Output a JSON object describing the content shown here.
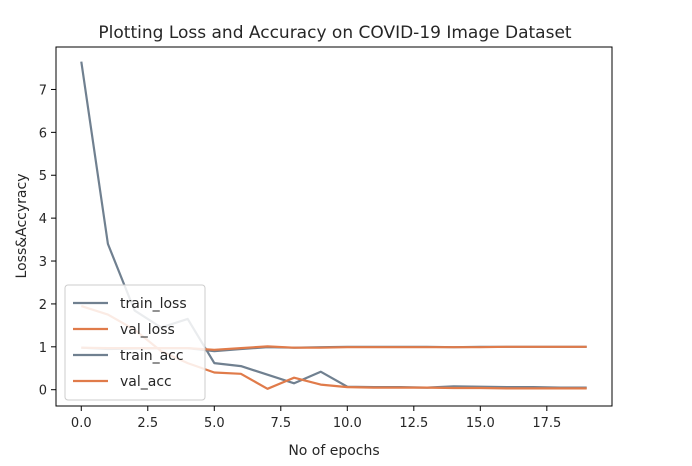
{
  "chart_data": {
    "type": "line",
    "title": "Plotting Loss and Accuracy on COVID-19 Image Dataset",
    "xlabel": "No of epochs",
    "ylabel": "Loss&Accyracy",
    "xlim": [
      -0.95,
      19.95
    ],
    "ylim": [
      -0.38,
      7.99
    ],
    "xticks": [
      0.0,
      2.5,
      5.0,
      7.5,
      10.0,
      12.5,
      15.0,
      17.5
    ],
    "xtick_labels": [
      "0.0",
      "2.5",
      "5.0",
      "7.5",
      "10.0",
      "12.5",
      "15.0",
      "17.5"
    ],
    "yticks": [
      0,
      1,
      2,
      3,
      4,
      5,
      6,
      7
    ],
    "ytick_labels": [
      "0",
      "1",
      "2",
      "3",
      "4",
      "5",
      "6",
      "7"
    ],
    "grid": false,
    "legend_position": "lower-left",
    "x": [
      0,
      1,
      2,
      3,
      4,
      5,
      6,
      7,
      8,
      9,
      10,
      11,
      12,
      13,
      14,
      15,
      16,
      17,
      18,
      19
    ],
    "series": [
      {
        "name": "train_loss",
        "color": "#708090",
        "values": [
          7.65,
          3.4,
          1.85,
          1.45,
          1.65,
          0.62,
          0.55,
          0.35,
          0.15,
          0.42,
          0.07,
          0.06,
          0.06,
          0.05,
          0.08,
          0.07,
          0.06,
          0.06,
          0.05,
          0.05
        ]
      },
      {
        "name": "val_loss",
        "color": "#E07B4A",
        "values": [
          1.95,
          1.75,
          1.4,
          0.9,
          0.62,
          0.4,
          0.37,
          0.02,
          0.28,
          0.12,
          0.06,
          0.05,
          0.05,
          0.05,
          0.04,
          0.04,
          0.03,
          0.03,
          0.03,
          0.03
        ]
      },
      {
        "name": "train_acc",
        "color": "#708090",
        "values": [
          0.98,
          0.95,
          0.96,
          0.97,
          0.97,
          0.9,
          0.95,
          0.99,
          0.98,
          0.99,
          1.0,
          1.0,
          1.0,
          1.0,
          0.99,
          1.0,
          1.0,
          1.0,
          1.0,
          1.0
        ]
      },
      {
        "name": "val_acc",
        "color": "#E07B4A",
        "values": [
          0.98,
          0.97,
          0.97,
          0.97,
          0.97,
          0.93,
          0.97,
          1.01,
          0.98,
          0.98,
          0.99,
          0.99,
          0.99,
          0.99,
          0.99,
          0.99,
          1.0,
          1.0,
          1.0,
          1.0
        ]
      }
    ]
  }
}
